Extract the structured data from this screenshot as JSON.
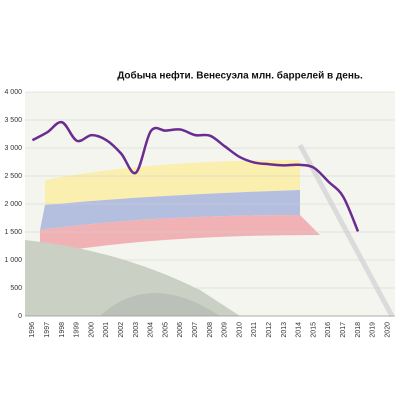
{
  "chart_data": {
    "type": "line",
    "title": "Добыча нефти. Венесуэла млн. баррелей в день.",
    "categories": [
      "1996",
      "1997",
      "1998",
      "1999",
      "2000",
      "2001",
      "2002",
      "2003",
      "2004",
      "2005",
      "2006",
      "2007",
      "2008",
      "2009",
      "2010",
      "2011",
      "2012",
      "2013",
      "2014",
      "2015",
      "2016",
      "2017",
      "2018",
      "2019",
      "2020"
    ],
    "series": [
      {
        "color": "#6a2c91",
        "values": [
          3140,
          3280,
          3460,
          3130,
          3230,
          3140,
          2900,
          2560,
          3300,
          3310,
          3330,
          3230,
          3220,
          3030,
          2840,
          2740,
          2710,
          2690,
          2700,
          2650,
          2400,
          2130,
          1510,
          null,
          null
        ]
      }
    ],
    "ylim": [
      0,
      4000
    ],
    "yticks": [
      0,
      500,
      {
        "value": 1000,
        "label": "1 000"
      },
      {
        "value": 1500,
        "label": "1 500"
      },
      {
        "value": 2000,
        "label": "2 000"
      },
      {
        "value": 2500,
        "label": "2 500"
      },
      {
        "value": 3000,
        "label": "3 000"
      },
      {
        "value": 3500,
        "label": "3 500"
      },
      {
        "value": 4000,
        "label": "4 000"
      }
    ],
    "grid": true
  }
}
